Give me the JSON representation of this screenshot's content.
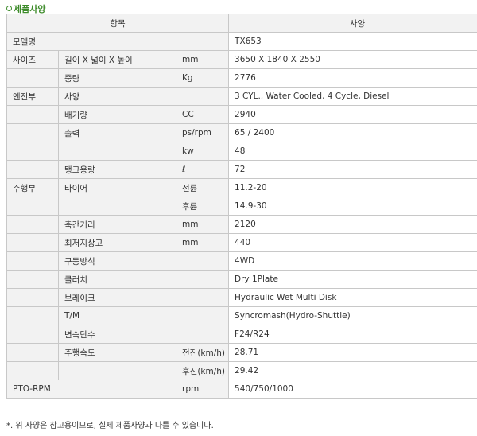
{
  "title": "제품사양",
  "colors": {
    "title": "#3d8b2a",
    "border": "#c8c8c8",
    "cell_bg": "#f2f2f2"
  },
  "header": {
    "item": "항목",
    "spec": "사양"
  },
  "rows": [
    {
      "c1": "모델명",
      "span": 3,
      "v": "TX653"
    },
    {
      "c1": "사이즈",
      "c2": "길이 X 넓이 X 높이",
      "c3": "mm",
      "v": "3650 X 1840 X 2550"
    },
    {
      "c1": "",
      "c2": "중량",
      "c3": "Kg",
      "v": "2776"
    },
    {
      "c1": "엔진부",
      "c2": "사양",
      "span2": true,
      "v": "3 CYL., Water Cooled, 4 Cycle, Diesel"
    },
    {
      "c1": "",
      "c2": "배기량",
      "c3": "CC",
      "v": "2940"
    },
    {
      "c1": "",
      "c2": "출력",
      "c3": "ps/rpm",
      "v": "65 / 2400"
    },
    {
      "c1": "",
      "c2": "",
      "c3": "kw",
      "v": "48"
    },
    {
      "c1": "",
      "c2": "탱크용량",
      "c3": "ℓ",
      "v": "72"
    },
    {
      "c1": "주행부",
      "c2": "타이어",
      "c3": "전륜",
      "v": "11.2-20"
    },
    {
      "c1": "",
      "c2": "",
      "c3": "후륜",
      "v": "14.9-30"
    },
    {
      "c1": "",
      "c2": "축간거리",
      "c3": "mm",
      "v": "2120"
    },
    {
      "c1": "",
      "c2": "최저지상고",
      "c3": "mm",
      "v": "440"
    },
    {
      "c1": "",
      "c2": "구동방식",
      "span2": true,
      "v": "4WD"
    },
    {
      "c1": "",
      "c2": "클러치",
      "span2": true,
      "v": "Dry 1Plate"
    },
    {
      "c1": "",
      "c2": "브레이크",
      "span2": true,
      "v": "Hydraulic Wet Multi Disk"
    },
    {
      "c1": "",
      "c2": "T/M",
      "span2": true,
      "v": "Syncromash(Hydro-Shuttle)"
    },
    {
      "c1": "",
      "c2": "변속단수",
      "span2": true,
      "v": "F24/R24"
    },
    {
      "c1": "",
      "c2": "주행속도",
      "c3": "전진(km/h)",
      "v": "28.71"
    },
    {
      "c1": "",
      "c2": "",
      "c3": "후진(km/h)",
      "v": "29.42"
    },
    {
      "c1": "PTO-RPM",
      "span12": true,
      "c3": "rpm",
      "v": "540/750/1000"
    }
  ],
  "footnote": "*. 위 사양은 참고용이므로, 실제 제품사양과 다를 수 있습니다."
}
